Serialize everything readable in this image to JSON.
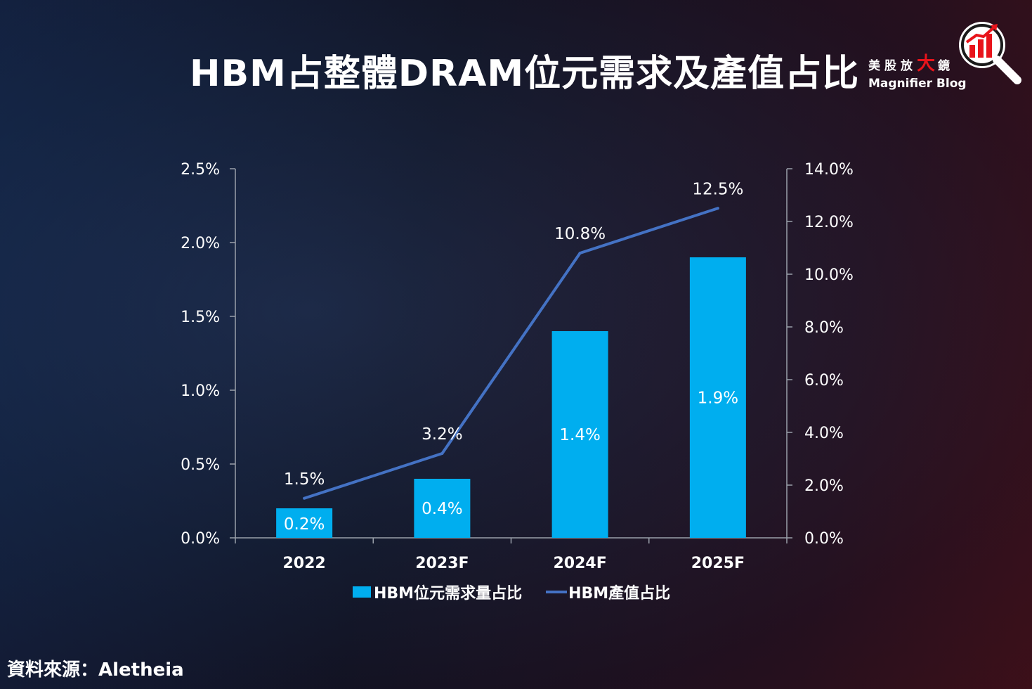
{
  "title": "HBM占整體DRAM位元需求及產值占比",
  "brand": {
    "name_cn_pre": "美股放",
    "name_cn_accent": "大",
    "name_cn_post": "鏡",
    "name_en": "Magnifier Blog",
    "logo_icon": "magnifier-chart-icon",
    "accent_color": "#e8141b"
  },
  "source": "資料來源：Aletheia",
  "colors": {
    "bar": "#00aeef",
    "line": "#4472c4",
    "axis": "#9aa0aa",
    "text": "#ffffff"
  },
  "chart_data": {
    "type": "bar",
    "categories": [
      "2022",
      "2023F",
      "2024F",
      "2025F"
    ],
    "series": [
      {
        "name": "HBM位元需求量占比",
        "type": "bar",
        "axis": "left",
        "values": [
          0.2,
          0.4,
          1.4,
          1.9
        ],
        "labels": [
          "0.2%",
          "0.4%",
          "1.4%",
          "1.9%"
        ]
      },
      {
        "name": "HBM產值占比",
        "type": "line",
        "axis": "right",
        "values": [
          1.5,
          3.2,
          10.8,
          12.5
        ],
        "labels": [
          "1.5%",
          "3.2%",
          "10.8%",
          "12.5%"
        ]
      }
    ],
    "y_left": {
      "ylim": [
        0,
        2.5
      ],
      "ticks": [
        "0.0%",
        "0.5%",
        "1.0%",
        "1.5%",
        "2.0%",
        "2.5%"
      ]
    },
    "y_right": {
      "ylim": [
        0,
        14
      ],
      "ticks": [
        "0.0%",
        "2.0%",
        "4.0%",
        "6.0%",
        "8.0%",
        "10.0%",
        "12.0%",
        "14.0%"
      ]
    },
    "legend_position": "bottom",
    "grid": false
  }
}
